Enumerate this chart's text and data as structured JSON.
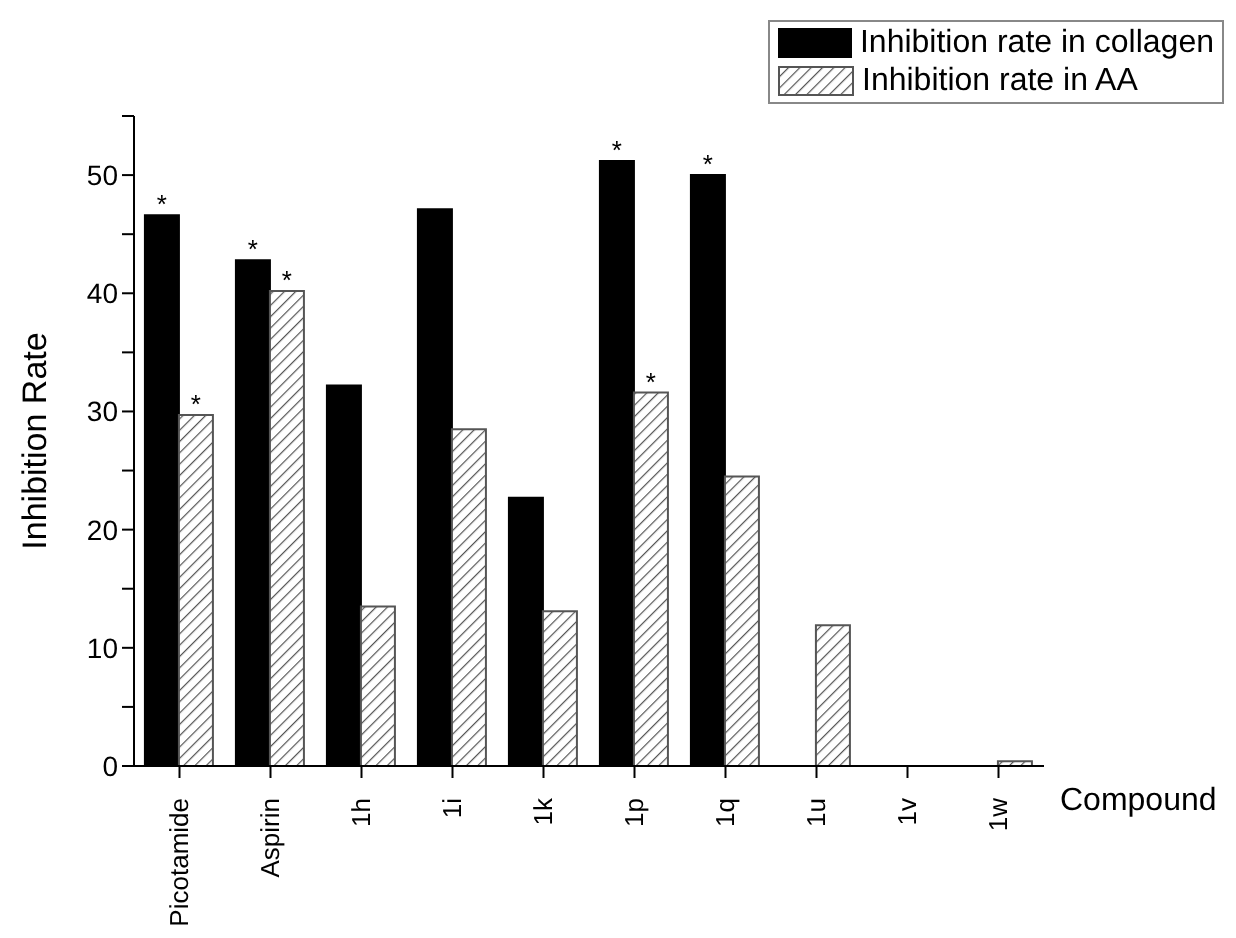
{
  "chart_data": {
    "type": "bar",
    "xlabel": "Compound",
    "ylabel": "Inhibition Rate",
    "categories": [
      "Picotamide",
      "Aspirin",
      "1h",
      "1i",
      "1k",
      "1p",
      "1q",
      "1u",
      "1v",
      "1w"
    ],
    "series": [
      {
        "name": "Inhibition rate in collagen",
        "color": "#000000",
        "values": [
          46.6,
          42.8,
          32.2,
          47.1,
          22.7,
          51.2,
          50.0,
          0,
          0,
          0
        ]
      },
      {
        "name": "Inhibition rate in AA",
        "color": "#555555",
        "values": [
          29.7,
          40.2,
          13.5,
          28.5,
          13.1,
          31.6,
          24.5,
          11.9,
          0,
          0.4
        ]
      }
    ],
    "ylim": [
      0,
      55
    ],
    "yticks": [
      0,
      {
        "value": 5,
        "label": null
      },
      10,
      {
        "value": 15,
        "label": null
      },
      20,
      {
        "value": 25,
        "label": null
      },
      30,
      {
        "value": 35,
        "label": null
      },
      40,
      {
        "value": 45,
        "label": null
      },
      50,
      {
        "value": 55,
        "label": null
      }
    ],
    "grid": false,
    "legend": "top right",
    "annotations": [
      {
        "text": "*",
        "x": "Picotamide",
        "y": 46.6
      },
      {
        "text": "*",
        "x": "Picotamide",
        "y": 29.7
      },
      {
        "text": "*",
        "x": "Aspirin",
        "y": 42.8
      },
      {
        "text": "*",
        "x": "Aspirin",
        "y": 40.2
      },
      {
        "text": "*",
        "x": "1p",
        "y": 51.2
      },
      {
        "text": "*",
        "x": "1p",
        "y": 31.6
      },
      {
        "text": "*",
        "x": "1q",
        "y": 50.0
      }
    ]
  }
}
